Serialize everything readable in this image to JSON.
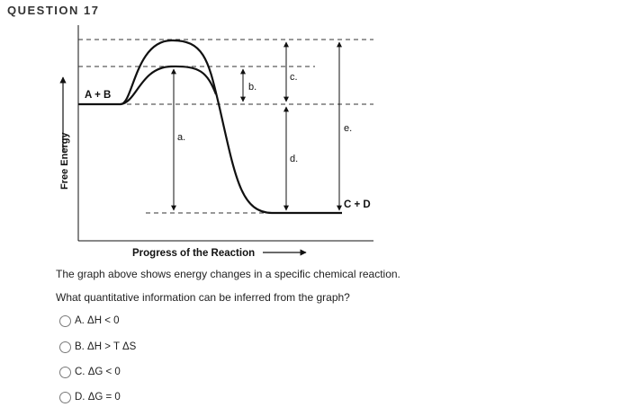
{
  "question": {
    "title": "QUESTION 17",
    "prompt_1": "The graph above shows energy changes in a specific chemical reaction.",
    "prompt_2": "What quantitative information can be inferred from the graph?"
  },
  "diagram": {
    "y_axis_label": "Free Energy",
    "x_axis_label": "Progress of the Reaction",
    "reactants_label": "A + B",
    "products_label": "C + D",
    "labels": {
      "a": "a.",
      "b": "b.",
      "c": "c.",
      "d": "d.",
      "e": "e."
    }
  },
  "choices": [
    {
      "id": "A",
      "label": "A. ΔH < 0"
    },
    {
      "id": "B",
      "label": "B. ΔH > T ΔS"
    },
    {
      "id": "C",
      "label": "C. ΔG < 0"
    },
    {
      "id": "D",
      "label": "D. ΔG = 0"
    }
  ],
  "colors": {
    "line": "#111111",
    "radio_border": "#7a7a7a"
  }
}
